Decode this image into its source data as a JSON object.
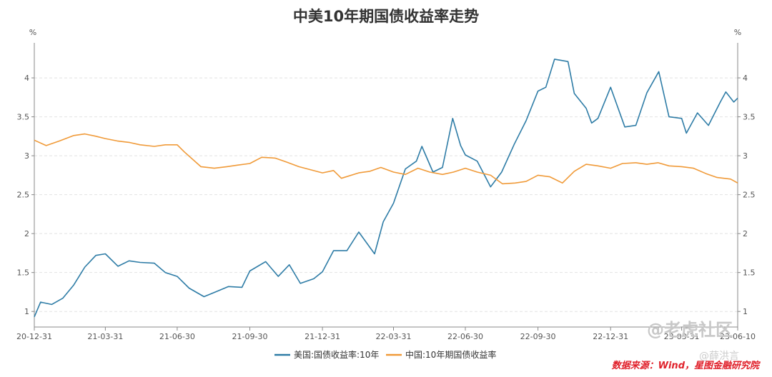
{
  "chart_data": {
    "type": "line",
    "title": "中美10年期国债收益率走势",
    "ylabel_left": "%",
    "ylabel_right": "%",
    "ylim": [
      0.8,
      4.45
    ],
    "yticks": [
      1,
      1.5,
      2,
      2.5,
      3,
      3.5,
      4
    ],
    "ytick_labels": [
      "1",
      "1.5",
      "2",
      "2.5",
      "3",
      "3.5",
      "4"
    ],
    "xlim": [
      "2020-12-31",
      "2023-06-10"
    ],
    "xticks": [
      "2020-12-31",
      "2021-03-31",
      "2021-06-30",
      "2021-09-30",
      "2021-12-31",
      "2022-03-31",
      "2022-06-30",
      "2022-09-30",
      "2022-12-31",
      "2023-03-31",
      "2023-06-10"
    ],
    "xtick_labels": [
      "20-12-31",
      "21-03-31",
      "21-06-30",
      "21-09-30",
      "21-12-31",
      "22-03-31",
      "22-06-30",
      "22-09-30",
      "22-12-31",
      "23-03-31",
      "23-06-10"
    ],
    "grid": "horizontal dashed",
    "legend_position": "bottom-center",
    "series": [
      {
        "name": "美国:国债收益率:10年",
        "color": "#2e7ca6",
        "points": [
          [
            "2020-12-31",
            0.93
          ],
          [
            "2021-01-08",
            1.12
          ],
          [
            "2021-01-22",
            1.09
          ],
          [
            "2021-02-05",
            1.17
          ],
          [
            "2021-02-19",
            1.34
          ],
          [
            "2021-03-05",
            1.57
          ],
          [
            "2021-03-19",
            1.72
          ],
          [
            "2021-03-31",
            1.74
          ],
          [
            "2021-04-16",
            1.58
          ],
          [
            "2021-04-30",
            1.65
          ],
          [
            "2021-05-14",
            1.63
          ],
          [
            "2021-06-01",
            1.62
          ],
          [
            "2021-06-15",
            1.5
          ],
          [
            "2021-06-30",
            1.45
          ],
          [
            "2021-07-15",
            1.3
          ],
          [
            "2021-08-03",
            1.19
          ],
          [
            "2021-08-20",
            1.26
          ],
          [
            "2021-09-03",
            1.32
          ],
          [
            "2021-09-20",
            1.31
          ],
          [
            "2021-09-30",
            1.52
          ],
          [
            "2021-10-20",
            1.64
          ],
          [
            "2021-11-05",
            1.45
          ],
          [
            "2021-11-19",
            1.6
          ],
          [
            "2021-12-03",
            1.36
          ],
          [
            "2021-12-20",
            1.42
          ],
          [
            "2021-12-31",
            1.51
          ],
          [
            "2022-01-14",
            1.78
          ],
          [
            "2022-01-31",
            1.78
          ],
          [
            "2022-02-15",
            2.02
          ],
          [
            "2022-03-07",
            1.74
          ],
          [
            "2022-03-18",
            2.15
          ],
          [
            "2022-03-31",
            2.39
          ],
          [
            "2022-04-15",
            2.83
          ],
          [
            "2022-04-29",
            2.93
          ],
          [
            "2022-05-06",
            3.12
          ],
          [
            "2022-05-20",
            2.79
          ],
          [
            "2022-06-01",
            2.85
          ],
          [
            "2022-06-14",
            3.48
          ],
          [
            "2022-06-24",
            3.13
          ],
          [
            "2022-06-30",
            3.01
          ],
          [
            "2022-07-15",
            2.93
          ],
          [
            "2022-08-01",
            2.6
          ],
          [
            "2022-08-15",
            2.79
          ],
          [
            "2022-08-31",
            3.15
          ],
          [
            "2022-09-15",
            3.45
          ],
          [
            "2022-09-30",
            3.83
          ],
          [
            "2022-10-10",
            3.88
          ],
          [
            "2022-10-21",
            4.24
          ],
          [
            "2022-11-07",
            4.21
          ],
          [
            "2022-11-15",
            3.8
          ],
          [
            "2022-11-30",
            3.61
          ],
          [
            "2022-12-07",
            3.42
          ],
          [
            "2022-12-15",
            3.48
          ],
          [
            "2022-12-31",
            3.88
          ],
          [
            "2023-01-18",
            3.37
          ],
          [
            "2023-02-01",
            3.39
          ],
          [
            "2023-02-15",
            3.81
          ],
          [
            "2023-03-02",
            4.08
          ],
          [
            "2023-03-15",
            3.5
          ],
          [
            "2023-03-31",
            3.48
          ],
          [
            "2023-04-06",
            3.29
          ],
          [
            "2023-04-20",
            3.55
          ],
          [
            "2023-05-04",
            3.39
          ],
          [
            "2023-05-19",
            3.69
          ],
          [
            "2023-05-26",
            3.82
          ],
          [
            "2023-06-05",
            3.69
          ],
          [
            "2023-06-10",
            3.74
          ]
        ]
      },
      {
        "name": "中国:10年期国债收益率",
        "color": "#f09a38",
        "points": [
          [
            "2020-12-31",
            3.2
          ],
          [
            "2021-01-15",
            3.13
          ],
          [
            "2021-02-01",
            3.19
          ],
          [
            "2021-02-19",
            3.26
          ],
          [
            "2021-03-05",
            3.28
          ],
          [
            "2021-03-19",
            3.25
          ],
          [
            "2021-03-31",
            3.22
          ],
          [
            "2021-04-15",
            3.19
          ],
          [
            "2021-05-01",
            3.17
          ],
          [
            "2021-05-14",
            3.14
          ],
          [
            "2021-06-01",
            3.12
          ],
          [
            "2021-06-15",
            3.14
          ],
          [
            "2021-06-30",
            3.14
          ],
          [
            "2021-07-09",
            3.05
          ],
          [
            "2021-07-30",
            2.86
          ],
          [
            "2021-08-16",
            2.84
          ],
          [
            "2021-09-01",
            2.86
          ],
          [
            "2021-09-15",
            2.88
          ],
          [
            "2021-09-30",
            2.9
          ],
          [
            "2021-10-15",
            2.98
          ],
          [
            "2021-11-01",
            2.97
          ],
          [
            "2021-11-15",
            2.92
          ],
          [
            "2021-12-01",
            2.86
          ],
          [
            "2021-12-31",
            2.78
          ],
          [
            "2022-01-14",
            2.81
          ],
          [
            "2022-01-24",
            2.71
          ],
          [
            "2022-02-15",
            2.78
          ],
          [
            "2022-03-01",
            2.8
          ],
          [
            "2022-03-15",
            2.85
          ],
          [
            "2022-03-31",
            2.79
          ],
          [
            "2022-04-15",
            2.76
          ],
          [
            "2022-05-01",
            2.84
          ],
          [
            "2022-05-16",
            2.79
          ],
          [
            "2022-06-01",
            2.76
          ],
          [
            "2022-06-15",
            2.79
          ],
          [
            "2022-06-30",
            2.84
          ],
          [
            "2022-07-15",
            2.79
          ],
          [
            "2022-08-01",
            2.75
          ],
          [
            "2022-08-16",
            2.64
          ],
          [
            "2022-09-01",
            2.65
          ],
          [
            "2022-09-15",
            2.67
          ],
          [
            "2022-09-30",
            2.75
          ],
          [
            "2022-10-15",
            2.73
          ],
          [
            "2022-10-31",
            2.65
          ],
          [
            "2022-11-15",
            2.8
          ],
          [
            "2022-11-30",
            2.89
          ],
          [
            "2022-12-15",
            2.87
          ],
          [
            "2022-12-31",
            2.84
          ],
          [
            "2023-01-15",
            2.9
          ],
          [
            "2023-02-01",
            2.91
          ],
          [
            "2023-02-15",
            2.89
          ],
          [
            "2023-03-01",
            2.91
          ],
          [
            "2023-03-15",
            2.87
          ],
          [
            "2023-03-31",
            2.86
          ],
          [
            "2023-04-15",
            2.84
          ],
          [
            "2023-05-01",
            2.77
          ],
          [
            "2023-05-15",
            2.72
          ],
          [
            "2023-06-01",
            2.7
          ],
          [
            "2023-06-10",
            2.65
          ]
        ]
      }
    ]
  },
  "source_note": "数据来源：Wind，星图金融研究院",
  "watermark": {
    "brand": "@老虎社区",
    "author": "@薛洪言"
  }
}
